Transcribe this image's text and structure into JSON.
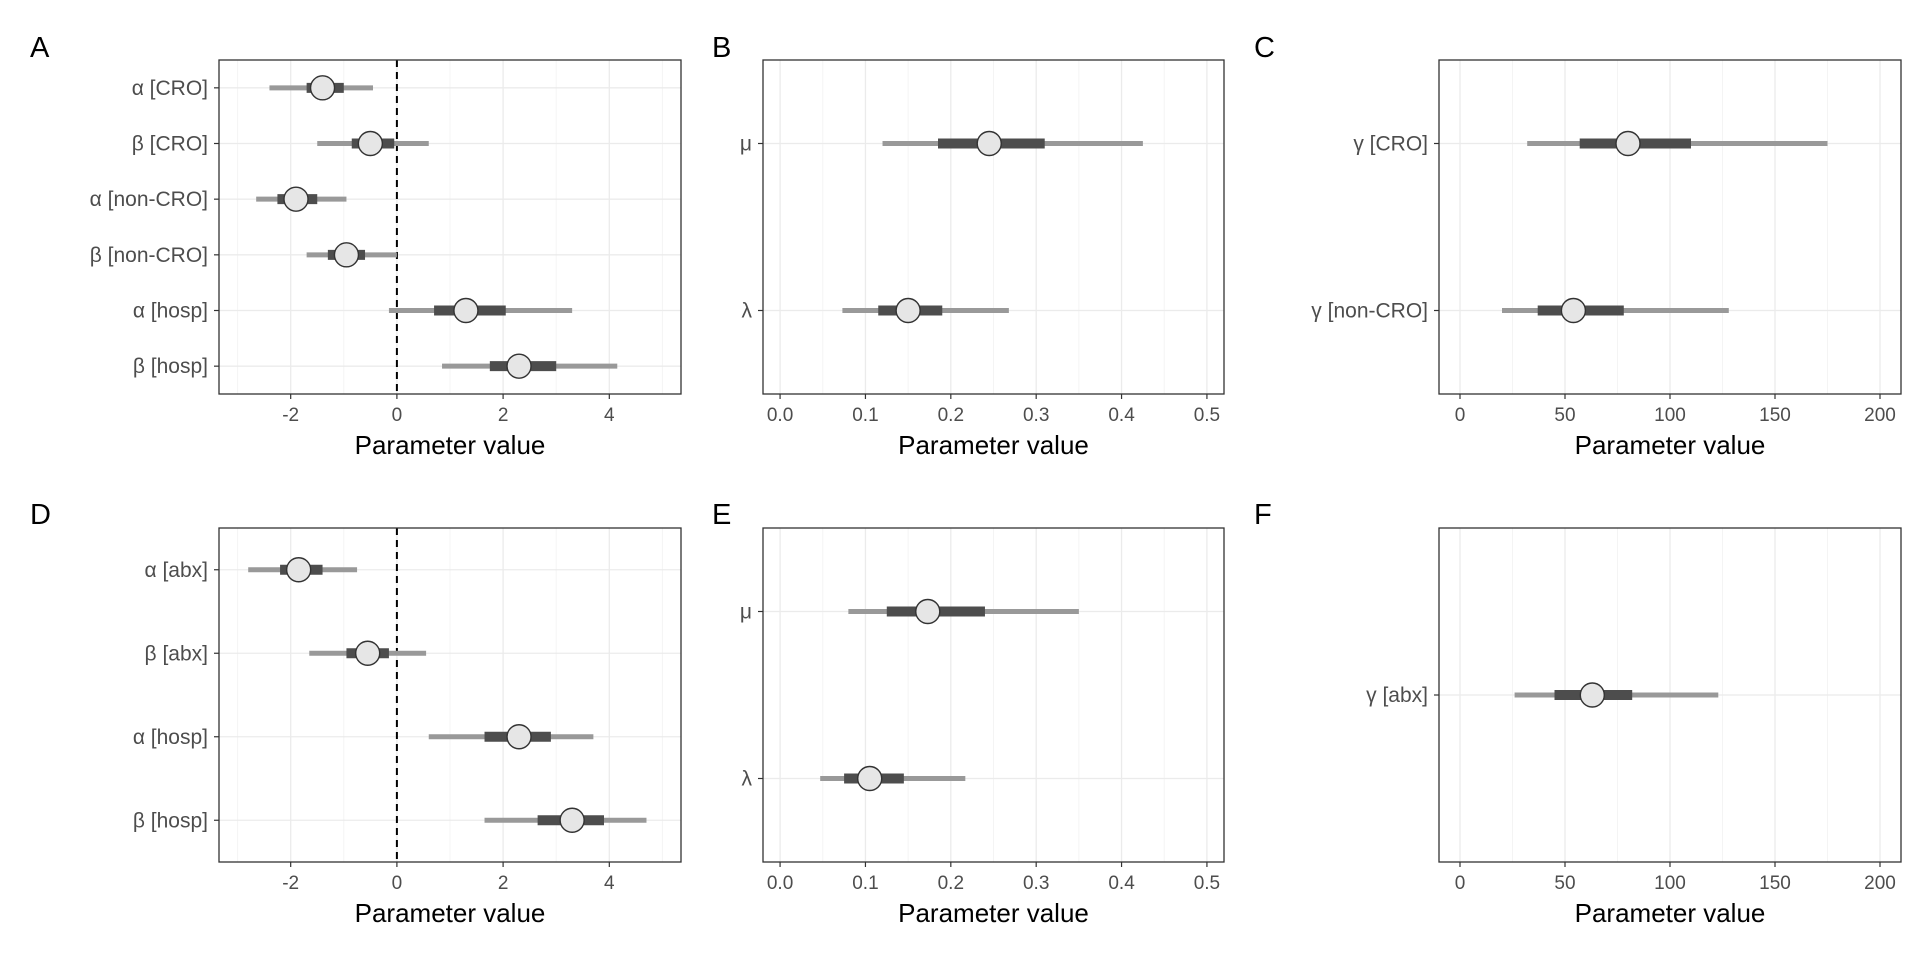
{
  "x_label": "Parameter value",
  "chart_data": [
    {
      "panel": "A",
      "type": "interval",
      "xlabel": "Parameter value",
      "xlim": [
        -3.35,
        5.35
      ],
      "xticks": [
        -2,
        0,
        2,
        4
      ],
      "ref_line": 0,
      "grid": true,
      "rows": [
        {
          "label": "α [CRO]",
          "median": -1.4,
          "inner": [
            -1.7,
            -1.0
          ],
          "outer": [
            -2.4,
            -0.45
          ]
        },
        {
          "label": "β [CRO]",
          "median": -0.5,
          "inner": [
            -0.85,
            -0.05
          ],
          "outer": [
            -1.5,
            0.6
          ]
        },
        {
          "label": "α [non-CRO]",
          "median": -1.9,
          "inner": [
            -2.25,
            -1.5
          ],
          "outer": [
            -2.65,
            -0.95
          ]
        },
        {
          "label": "β [non-CRO]",
          "median": -0.95,
          "inner": [
            -1.3,
            -0.6
          ],
          "outer": [
            -1.7,
            0.0
          ]
        },
        {
          "label": "α [hosp]",
          "median": 1.3,
          "inner": [
            0.7,
            2.05
          ],
          "outer": [
            -0.15,
            3.3
          ]
        },
        {
          "label": "β [hosp]",
          "median": 2.3,
          "inner": [
            1.75,
            3.0
          ],
          "outer": [
            0.85,
            4.15
          ]
        }
      ]
    },
    {
      "panel": "B",
      "type": "interval",
      "xlabel": "Parameter value",
      "xlim": [
        -0.02,
        0.52
      ],
      "xticks": [
        0.0,
        0.1,
        0.2,
        0.3,
        0.4,
        0.5
      ],
      "grid": true,
      "rows": [
        {
          "label": "μ",
          "median": 0.245,
          "inner": [
            0.185,
            0.31
          ],
          "outer": [
            0.12,
            0.425
          ]
        },
        {
          "label": "λ",
          "median": 0.15,
          "inner": [
            0.115,
            0.19
          ],
          "outer": [
            0.073,
            0.268
          ]
        }
      ]
    },
    {
      "panel": "C",
      "type": "interval",
      "xlabel": "Parameter value",
      "xlim": [
        -10,
        210
      ],
      "xticks": [
        0,
        50,
        100,
        150,
        200
      ],
      "grid": true,
      "rows": [
        {
          "label": "γ [CRO]",
          "median": 80,
          "inner": [
            57,
            110
          ],
          "outer": [
            32,
            175
          ]
        },
        {
          "label": "γ [non-CRO]",
          "median": 54,
          "inner": [
            37,
            78
          ],
          "outer": [
            20,
            128
          ]
        }
      ]
    },
    {
      "panel": "D",
      "type": "interval",
      "xlabel": "Parameter value",
      "xlim": [
        -3.35,
        5.35
      ],
      "xticks": [
        -2,
        0,
        2,
        4
      ],
      "ref_line": 0,
      "grid": true,
      "rows": [
        {
          "label": "α [abx]",
          "median": -1.85,
          "inner": [
            -2.2,
            -1.4
          ],
          "outer": [
            -2.8,
            -0.75
          ]
        },
        {
          "label": "β [abx]",
          "median": -0.55,
          "inner": [
            -0.95,
            -0.15
          ],
          "outer": [
            -1.65,
            0.55
          ]
        },
        {
          "label": "α [hosp]",
          "median": 2.3,
          "inner": [
            1.65,
            2.9
          ],
          "outer": [
            0.6,
            3.7
          ]
        },
        {
          "label": "β [hosp]",
          "median": 3.3,
          "inner": [
            2.65,
            3.9
          ],
          "outer": [
            1.65,
            4.7
          ]
        }
      ]
    },
    {
      "panel": "E",
      "type": "interval",
      "xlabel": "Parameter value",
      "xlim": [
        -0.02,
        0.52
      ],
      "xticks": [
        0.0,
        0.1,
        0.2,
        0.3,
        0.4,
        0.5
      ],
      "grid": true,
      "rows": [
        {
          "label": "μ",
          "median": 0.173,
          "inner": [
            0.125,
            0.24
          ],
          "outer": [
            0.08,
            0.35
          ]
        },
        {
          "label": "λ",
          "median": 0.105,
          "inner": [
            0.075,
            0.145
          ],
          "outer": [
            0.047,
            0.217
          ]
        }
      ]
    },
    {
      "panel": "F",
      "type": "interval",
      "xlabel": "Parameter value",
      "xlim": [
        -10,
        210
      ],
      "xticks": [
        0,
        50,
        100,
        150,
        200
      ],
      "grid": true,
      "rows": [
        {
          "label": "γ [abx]",
          "median": 63,
          "inner": [
            45,
            82
          ],
          "outer": [
            26,
            123
          ]
        }
      ]
    }
  ],
  "colors": {
    "outer_interval": "#999999",
    "inner_interval": "#4d4d4d",
    "point_fill": "#e6e6e6",
    "point_stroke": "#333333",
    "grid_major": "#ebebeb",
    "grid_minor": "#f4f4f4",
    "frame": "#333333",
    "text": "#4d4d4d",
    "title_text": "#000000"
  }
}
